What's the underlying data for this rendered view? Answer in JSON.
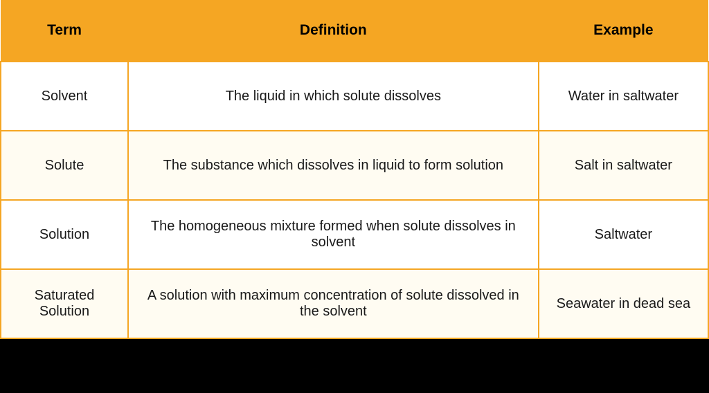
{
  "table": {
    "type": "table",
    "header_bg_color": "#f5a623",
    "header_text_color": "#000000",
    "body_text_color": "#1a1a1a",
    "border_color": "#f5a623",
    "row_odd_bg": "#ffffff",
    "row_even_bg": "#fffcf2",
    "bottom_bar_bg": "#000000",
    "header_fontsize": 21,
    "body_fontsize": 20,
    "columns": [
      {
        "key": "term",
        "label": "Term",
        "width_pct": 18
      },
      {
        "key": "definition",
        "label": "Definition",
        "width_pct": 58
      },
      {
        "key": "example",
        "label": "Example",
        "width_pct": 24
      }
    ],
    "rows": [
      {
        "term": "Solvent",
        "definition": "The liquid in which solute dissolves",
        "example": "Water in saltwater"
      },
      {
        "term": "Solute",
        "definition": "The substance which dissolves in liquid to form solution",
        "example": "Salt in saltwater"
      },
      {
        "term": "Solution",
        "definition": "The homogeneous mixture formed when  solute dissolves in solvent",
        "example": "Saltwater"
      },
      {
        "term": "Saturated Solution",
        "definition": "A solution with maximum concentration of solute dissolved in the solvent",
        "example": "Seawater in dead sea"
      }
    ]
  }
}
